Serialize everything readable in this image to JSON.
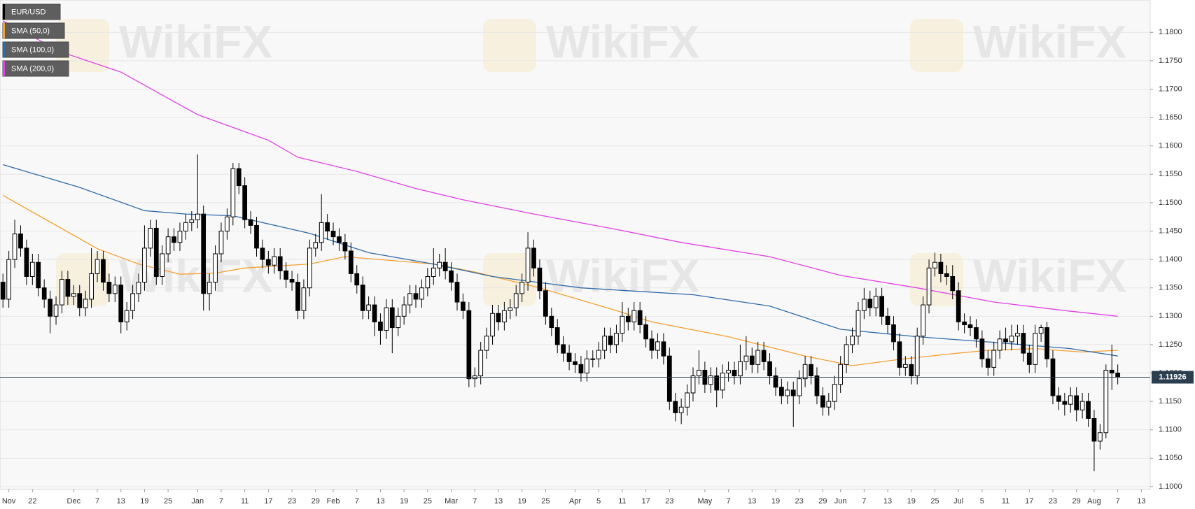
{
  "chart_data": {
    "type": "candlestick",
    "title": "EUR/USD",
    "watermark": "WikiFX",
    "legend": "top-left",
    "grid": true,
    "color_up": "#ffffff",
    "color_down": "#000000",
    "last_price": 1.11926,
    "last_price_color": "#2b3e50",
    "xlim": [
      -0.5,
      194.5
    ],
    "xticks": [
      {
        "value": 1,
        "label": "Nov"
      },
      {
        "value": 5,
        "label": "22"
      },
      {
        "value": 12,
        "label": "Dec"
      },
      {
        "value": 16,
        "label": "7"
      },
      {
        "value": 20,
        "label": "13"
      },
      {
        "value": 24,
        "label": "19"
      },
      {
        "value": 28,
        "label": "25"
      },
      {
        "value": 33,
        "label": "Jan"
      },
      {
        "value": 37,
        "label": "7"
      },
      {
        "value": 41,
        "label": "11"
      },
      {
        "value": 45,
        "label": "17"
      },
      {
        "value": 49,
        "label": "23"
      },
      {
        "value": 53,
        "label": "29"
      },
      {
        "value": 56,
        "label": "Feb"
      },
      {
        "value": 60,
        "label": "7"
      },
      {
        "value": 64,
        "label": "13"
      },
      {
        "value": 68,
        "label": "19"
      },
      {
        "value": 72,
        "label": "25"
      },
      {
        "value": 76,
        "label": "Mar"
      },
      {
        "value": 80,
        "label": "7"
      },
      {
        "value": 84,
        "label": "13"
      },
      {
        "value": 88,
        "label": "19"
      },
      {
        "value": 92,
        "label": "25"
      },
      {
        "value": 97,
        "label": "Apr"
      },
      {
        "value": 101,
        "label": "5"
      },
      {
        "value": 105,
        "label": "11"
      },
      {
        "value": 109,
        "label": "17"
      },
      {
        "value": 113,
        "label": "23"
      },
      {
        "value": 119,
        "label": "May"
      },
      {
        "value": 123,
        "label": "7"
      },
      {
        "value": 127,
        "label": "13"
      },
      {
        "value": 131,
        "label": "19"
      },
      {
        "value": 135,
        "label": "23"
      },
      {
        "value": 139,
        "label": "29"
      },
      {
        "value": 142,
        "label": "Jun"
      },
      {
        "value": 146,
        "label": "7"
      },
      {
        "value": 150,
        "label": "13"
      },
      {
        "value": 154,
        "label": "19"
      },
      {
        "value": 158,
        "label": "25"
      },
      {
        "value": 162,
        "label": "Jul"
      },
      {
        "value": 166,
        "label": "5"
      },
      {
        "value": 170,
        "label": "11"
      },
      {
        "value": 174,
        "label": "17"
      },
      {
        "value": 178,
        "label": "23"
      },
      {
        "value": 182,
        "label": "29"
      },
      {
        "value": 185,
        "label": "Aug"
      },
      {
        "value": 189,
        "label": "7"
      },
      {
        "value": 193,
        "label": "13"
      }
    ],
    "ylim": [
      1.0995,
      1.1857
    ],
    "yticks": [
      {
        "value": 1.1,
        "label": "1.1000"
      },
      {
        "value": 1.105,
        "label": "1.1050"
      },
      {
        "value": 1.11,
        "label": "1.1100"
      },
      {
        "value": 1.115,
        "label": "1.1150"
      },
      {
        "value": 1.12,
        "label": "1.1200"
      },
      {
        "value": 1.125,
        "label": "1.1250"
      },
      {
        "value": 1.13,
        "label": "1.1300"
      },
      {
        "value": 1.135,
        "label": "1.1350"
      },
      {
        "value": 1.14,
        "label": "1.1400"
      },
      {
        "value": 1.145,
        "label": "1.1450"
      },
      {
        "value": 1.15,
        "label": "1.1500"
      },
      {
        "value": 1.155,
        "label": "1.1550"
      },
      {
        "value": 1.16,
        "label": "1.1600"
      },
      {
        "value": 1.165,
        "label": "1.1650"
      },
      {
        "value": 1.17,
        "label": "1.1700"
      },
      {
        "value": 1.175,
        "label": "1.1750"
      },
      {
        "value": 1.18,
        "label": "1.1800"
      }
    ],
    "open": [
      1.136,
      1.133,
      1.14,
      1.1445,
      1.142,
      1.137,
      1.1395,
      1.135,
      1.133,
      1.13,
      1.132,
      1.1365,
      1.1335,
      1.134,
      1.1315,
      1.133,
      1.1375,
      1.14,
      1.136,
      1.134,
      1.1355,
      1.129,
      1.131,
      1.134,
      1.136,
      1.142,
      1.1455,
      1.137,
      1.141,
      1.144,
      1.143,
      1.145,
      1.1465,
      1.147,
      1.148,
      1.134,
      1.136,
      1.141,
      1.145,
      1.1475,
      1.156,
      1.153,
      1.147,
      1.146,
      1.142,
      1.14,
      1.139,
      1.1405,
      1.138,
      1.1365,
      1.136,
      1.131,
      1.135,
      1.142,
      1.143,
      1.1465,
      1.145,
      1.144,
      1.143,
      1.1415,
      1.1375,
      1.1355,
      1.131,
      1.132,
      1.129,
      1.1275,
      1.1315,
      1.128,
      1.13,
      1.132,
      1.134,
      1.133,
      1.135,
      1.137,
      1.1385,
      1.1395,
      1.138,
      1.136,
      1.1325,
      1.131,
      1.119,
      1.1195,
      1.124,
      1.1265,
      1.1305,
      1.129,
      1.131,
      1.1315,
      1.134,
      1.136,
      1.142,
      1.1385,
      1.1345,
      1.13,
      1.128,
      1.125,
      1.1235,
      1.122,
      1.1215,
      1.12,
      1.1225,
      1.1225,
      1.124,
      1.1265,
      1.125,
      1.127,
      1.13,
      1.129,
      1.131,
      1.1285,
      1.126,
      1.124,
      1.1255,
      1.123,
      1.115,
      1.113,
      1.114,
      1.1165,
      1.1195,
      1.1205,
      1.118,
      1.1195,
      1.117,
      1.12,
      1.1205,
      1.1195,
      1.122,
      1.123,
      1.1215,
      1.124,
      1.122,
      1.1195,
      1.1175,
      1.116,
      1.117,
      1.116,
      1.119,
      1.1215,
      1.1195,
      1.116,
      1.114,
      1.115,
      1.118,
      1.1215,
      1.125,
      1.1265,
      1.131,
      1.133,
      1.1315,
      1.1335,
      1.13,
      1.1285,
      1.1255,
      1.121,
      1.1215,
      1.1195,
      1.1265,
      1.132,
      1.1385,
      1.1395,
      1.1375,
      1.137,
      1.1345,
      1.129,
      1.1285,
      1.128,
      1.126,
      1.1225,
      1.121,
      1.124,
      1.126,
      1.1255,
      1.1265,
      1.127,
      1.1235,
      1.1215,
      1.127,
      1.128,
      1.1225,
      1.116,
      1.115,
      1.1145,
      1.116,
      1.1135,
      1.115,
      1.112,
      1.108,
      1.1095,
      1.1205,
      1.12
    ],
    "high": [
      1.1375,
      1.1415,
      1.147,
      1.146,
      1.1435,
      1.141,
      1.141,
      1.1365,
      1.1345,
      1.1335,
      1.138,
      1.138,
      1.1355,
      1.1355,
      1.1345,
      1.142,
      1.1415,
      1.1415,
      1.1375,
      1.137,
      1.137,
      1.1325,
      1.1355,
      1.1375,
      1.146,
      1.147,
      1.147,
      1.1425,
      1.1455,
      1.1455,
      1.1465,
      1.148,
      1.1485,
      1.1585,
      1.1495,
      1.1375,
      1.1425,
      1.1465,
      1.149,
      1.157,
      1.157,
      1.1545,
      1.1485,
      1.1475,
      1.1435,
      1.1415,
      1.142,
      1.142,
      1.1395,
      1.138,
      1.1375,
      1.1365,
      1.1435,
      1.1445,
      1.1515,
      1.148,
      1.1465,
      1.1455,
      1.1445,
      1.143,
      1.139,
      1.137,
      1.1335,
      1.1335,
      1.1305,
      1.133,
      1.133,
      1.1315,
      1.1335,
      1.1355,
      1.1355,
      1.1365,
      1.1385,
      1.142,
      1.141,
      1.142,
      1.1395,
      1.1375,
      1.134,
      1.1325,
      1.121,
      1.1255,
      1.128,
      1.132,
      1.132,
      1.1325,
      1.133,
      1.1355,
      1.1375,
      1.1448,
      1.1435,
      1.14,
      1.136,
      1.1315,
      1.1295,
      1.1265,
      1.125,
      1.1235,
      1.123,
      1.124,
      1.124,
      1.1255,
      1.128,
      1.128,
      1.1285,
      1.1325,
      1.1315,
      1.1325,
      1.1325,
      1.13,
      1.1275,
      1.127,
      1.127,
      1.1245,
      1.1165,
      1.1155,
      1.118,
      1.121,
      1.124,
      1.122,
      1.121,
      1.121,
      1.1215,
      1.122,
      1.122,
      1.125,
      1.1265,
      1.1245,
      1.1255,
      1.1255,
      1.1235,
      1.121,
      1.119,
      1.1185,
      1.1185,
      1.1205,
      1.123,
      1.123,
      1.121,
      1.1175,
      1.1165,
      1.1195,
      1.123,
      1.1265,
      1.128,
      1.1325,
      1.135,
      1.1345,
      1.135,
      1.135,
      1.1315,
      1.13,
      1.127,
      1.123,
      1.123,
      1.128,
      1.1335,
      1.14,
      1.1412,
      1.141,
      1.139,
      1.139,
      1.136,
      1.1305,
      1.13,
      1.1295,
      1.1275,
      1.124,
      1.1255,
      1.1275,
      1.128,
      1.1285,
      1.1285,
      1.1285,
      1.125,
      1.1285,
      1.1285,
      1.129,
      1.124,
      1.1175,
      1.1165,
      1.1175,
      1.1175,
      1.1165,
      1.1165,
      1.1135,
      1.111,
      1.1215,
      1.125,
      1.1215
    ],
    "low": [
      1.1315,
      1.1315,
      1.1385,
      1.1405,
      1.1355,
      1.1355,
      1.1335,
      1.1315,
      1.127,
      1.1285,
      1.1305,
      1.132,
      1.132,
      1.13,
      1.13,
      1.1315,
      1.136,
      1.1345,
      1.1325,
      1.1325,
      1.127,
      1.1275,
      1.1295,
      1.1325,
      1.1345,
      1.1405,
      1.1355,
      1.1355,
      1.1395,
      1.1415,
      1.1415,
      1.1435,
      1.145,
      1.1455,
      1.131,
      1.131,
      1.1345,
      1.1395,
      1.1435,
      1.146,
      1.1515,
      1.1455,
      1.1445,
      1.1405,
      1.1385,
      1.1375,
      1.1375,
      1.1365,
      1.135,
      1.1345,
      1.1295,
      1.1295,
      1.1335,
      1.1405,
      1.1415,
      1.1435,
      1.1425,
      1.1415,
      1.14,
      1.136,
      1.134,
      1.1295,
      1.1295,
      1.1265,
      1.125,
      1.126,
      1.1235,
      1.1265,
      1.1285,
      1.1305,
      1.1315,
      1.1315,
      1.1335,
      1.1355,
      1.137,
      1.1365,
      1.1345,
      1.131,
      1.1295,
      1.1175,
      1.1175,
      1.118,
      1.1225,
      1.125,
      1.1275,
      1.1275,
      1.1295,
      1.13,
      1.1325,
      1.1345,
      1.137,
      1.133,
      1.1285,
      1.1265,
      1.1235,
      1.122,
      1.1205,
      1.12,
      1.1185,
      1.1185,
      1.121,
      1.121,
      1.1225,
      1.1235,
      1.1235,
      1.1255,
      1.1275,
      1.1275,
      1.127,
      1.1245,
      1.1225,
      1.1225,
      1.1215,
      1.1135,
      1.1115,
      1.111,
      1.1125,
      1.115,
      1.118,
      1.1165,
      1.1165,
      1.114,
      1.1155,
      1.1185,
      1.118,
      1.118,
      1.1205,
      1.12,
      1.12,
      1.1205,
      1.118,
      1.116,
      1.1145,
      1.1145,
      1.1105,
      1.1145,
      1.1175,
      1.118,
      1.1145,
      1.1125,
      1.1125,
      1.1135,
      1.1165,
      1.12,
      1.1235,
      1.125,
      1.1295,
      1.13,
      1.13,
      1.1285,
      1.127,
      1.124,
      1.1195,
      1.1195,
      1.118,
      1.118,
      1.125,
      1.1305,
      1.137,
      1.136,
      1.1355,
      1.133,
      1.1275,
      1.127,
      1.1265,
      1.1245,
      1.121,
      1.1195,
      1.1195,
      1.1225,
      1.124,
      1.124,
      1.125,
      1.122,
      1.12,
      1.12,
      1.1255,
      1.121,
      1.1145,
      1.1135,
      1.1125,
      1.113,
      1.1115,
      1.112,
      1.1105,
      1.1027,
      1.1065,
      1.1085,
      1.117,
      1.118
    ],
    "close": [
      1.133,
      1.14,
      1.1445,
      1.142,
      1.137,
      1.1395,
      1.135,
      1.133,
      1.13,
      1.132,
      1.1365,
      1.1335,
      1.134,
      1.1315,
      1.133,
      1.1375,
      1.14,
      1.136,
      1.134,
      1.1355,
      1.129,
      1.131,
      1.134,
      1.136,
      1.142,
      1.1455,
      1.137,
      1.141,
      1.144,
      1.143,
      1.145,
      1.1465,
      1.147,
      1.148,
      1.134,
      1.136,
      1.141,
      1.145,
      1.1475,
      1.156,
      1.153,
      1.147,
      1.146,
      1.142,
      1.14,
      1.139,
      1.1405,
      1.138,
      1.1365,
      1.136,
      1.131,
      1.135,
      1.142,
      1.143,
      1.1465,
      1.145,
      1.144,
      1.143,
      1.1415,
      1.1375,
      1.1355,
      1.131,
      1.132,
      1.129,
      1.1275,
      1.1315,
      1.128,
      1.13,
      1.132,
      1.134,
      1.133,
      1.135,
      1.137,
      1.1385,
      1.1395,
      1.138,
      1.136,
      1.1325,
      1.131,
      1.119,
      1.1195,
      1.124,
      1.1265,
      1.1305,
      1.129,
      1.131,
      1.1315,
      1.134,
      1.136,
      1.142,
      1.1385,
      1.1345,
      1.13,
      1.128,
      1.125,
      1.1235,
      1.122,
      1.1215,
      1.12,
      1.1225,
      1.1225,
      1.124,
      1.1265,
      1.125,
      1.127,
      1.13,
      1.129,
      1.131,
      1.1285,
      1.126,
      1.124,
      1.1255,
      1.123,
      1.115,
      1.113,
      1.114,
      1.1165,
      1.1195,
      1.1205,
      1.118,
      1.1195,
      1.117,
      1.12,
      1.1205,
      1.1195,
      1.122,
      1.123,
      1.1215,
      1.124,
      1.122,
      1.1195,
      1.1175,
      1.116,
      1.117,
      1.116,
      1.119,
      1.1215,
      1.1195,
      1.116,
      1.114,
      1.115,
      1.118,
      1.1215,
      1.125,
      1.1265,
      1.131,
      1.133,
      1.1315,
      1.1335,
      1.13,
      1.1285,
      1.1255,
      1.121,
      1.1215,
      1.1195,
      1.1265,
      1.132,
      1.1385,
      1.1395,
      1.1375,
      1.137,
      1.1345,
      1.129,
      1.1285,
      1.128,
      1.126,
      1.1225,
      1.121,
      1.124,
      1.126,
      1.1255,
      1.1265,
      1.127,
      1.1235,
      1.1215,
      1.127,
      1.128,
      1.1225,
      1.116,
      1.115,
      1.1145,
      1.116,
      1.1135,
      1.115,
      1.112,
      1.108,
      1.1095,
      1.1205,
      1.12,
      1.11926
    ],
    "series": [
      {
        "name": "SMA (50,0)",
        "color": "#f5a031",
        "x": [
          0,
          8,
          16,
          23,
          30,
          36,
          41,
          52,
          58,
          73,
          80,
          91,
          104,
          110,
          123,
          136,
          144,
          152,
          161,
          167,
          175,
          183,
          189
        ],
        "values": [
          1.1513,
          1.1466,
          1.1419,
          1.1392,
          1.1374,
          1.1376,
          1.1385,
          1.1392,
          1.1405,
          1.1392,
          1.1378,
          1.135,
          1.131,
          1.129,
          1.1264,
          1.123,
          1.1213,
          1.1224,
          1.1234,
          1.124,
          1.1243,
          1.1237,
          1.124
        ]
      },
      {
        "name": "SMA (100,0)",
        "color": "#2f6aa8",
        "x": [
          0,
          13,
          24,
          31,
          39,
          52,
          62,
          73,
          83,
          98,
          117,
          130,
          142,
          155,
          168,
          181,
          189
        ],
        "values": [
          1.1567,
          1.1527,
          1.1486,
          1.148,
          1.1477,
          1.1446,
          1.1412,
          1.1392,
          1.137,
          1.135,
          1.1338,
          1.1318,
          1.1277,
          1.1264,
          1.1254,
          1.1243,
          1.123
        ]
      },
      {
        "name": "SMA (200,0)",
        "color": "#e040e6",
        "x": [
          0,
          10,
          20,
          33,
          45,
          50,
          60,
          70,
          78,
          90,
          104,
          115,
          130,
          142,
          155,
          168,
          180,
          189
        ],
        "values": [
          1.182,
          1.1765,
          1.173,
          1.1655,
          1.161,
          1.158,
          1.1555,
          1.1525,
          1.1505,
          1.148,
          1.1453,
          1.143,
          1.1405,
          1.1372,
          1.135,
          1.1325,
          1.131,
          1.13
        ]
      }
    ]
  }
}
